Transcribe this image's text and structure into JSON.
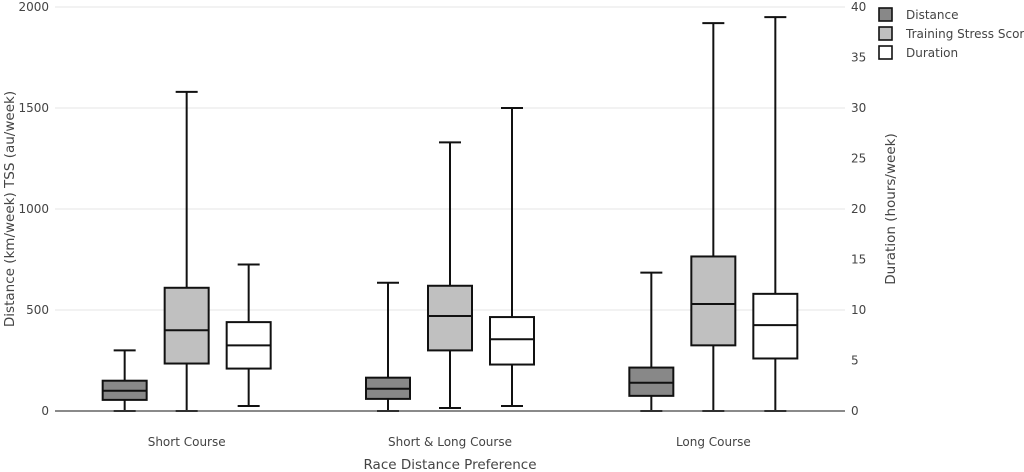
{
  "chart_data": {
    "type": "box",
    "xlabel": "Race Distance Preference",
    "ylabel": "Distance (km/week)  TSS (au/week)",
    "y2label": "Duration (hours/week)",
    "ylim": [
      0,
      2000
    ],
    "y2lim": [
      0,
      40
    ],
    "yticks": [
      "0",
      "500",
      "1000",
      "1500",
      "2000"
    ],
    "y2ticks": [
      "0",
      "5",
      "10",
      "15",
      "20",
      "25",
      "30",
      "35",
      "40"
    ],
    "grid": true,
    "legend_position": "top-right",
    "categories": [
      "Short Course",
      "Short & Long Course",
      "Long Course"
    ],
    "series": [
      {
        "name": "Distance",
        "axis": "left",
        "color": "#888888",
        "boxes": [
          {
            "min": 0,
            "q1": 55,
            "median": 100,
            "q3": 150,
            "max": 300
          },
          {
            "min": 0,
            "q1": 60,
            "median": 110,
            "q3": 165,
            "max": 635
          },
          {
            "min": 0,
            "q1": 75,
            "median": 140,
            "q3": 215,
            "max": 685
          }
        ]
      },
      {
        "name": "Training Stress Score",
        "axis": "left",
        "color": "#c0c0c0",
        "boxes": [
          {
            "min": 0,
            "q1": 235,
            "median": 400,
            "q3": 610,
            "max": 1580
          },
          {
            "min": 15,
            "q1": 300,
            "median": 470,
            "q3": 620,
            "max": 1330
          },
          {
            "min": 0,
            "q1": 325,
            "median": 530,
            "q3": 765,
            "max": 1920
          }
        ]
      },
      {
        "name": "Duration",
        "axis": "right",
        "color": "#ffffff",
        "boxes": [
          {
            "min": 0.5,
            "q1": 4.2,
            "median": 6.5,
            "q3": 8.8,
            "max": 14.5
          },
          {
            "min": 0.5,
            "q1": 4.6,
            "median": 7.1,
            "q3": 9.3,
            "max": 30.0
          },
          {
            "min": 0,
            "q1": 5.2,
            "median": 8.5,
            "q3": 11.6,
            "max": 39.0
          }
        ]
      }
    ]
  }
}
